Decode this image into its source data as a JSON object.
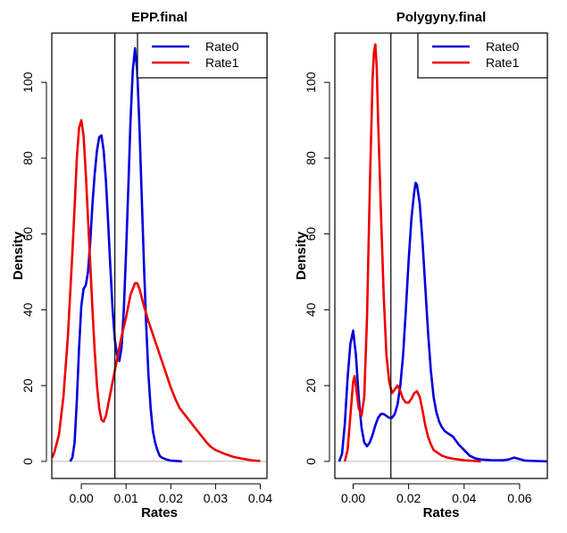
{
  "chart_data": [
    {
      "type": "line",
      "title": "EPP.final",
      "xlabel": "Rates",
      "ylabel": "Density",
      "xlim": [
        -0.0066,
        0.0415
      ],
      "ylim": [
        -4.5,
        113
      ],
      "xticks": [
        0.0,
        0.01,
        0.02,
        0.03,
        0.04
      ],
      "xtick_labels": [
        "0.00",
        "0.01",
        "0.02",
        "0.03",
        "0.04"
      ],
      "yticks": [
        0,
        20,
        40,
        60,
        80,
        100
      ],
      "ytick_labels": [
        "0",
        "20",
        "40",
        "60",
        "80",
        "100"
      ],
      "vline": 0.0075,
      "legend": {
        "position": "top-right",
        "entries": [
          "Rate0",
          "Rate1"
        ]
      },
      "series": [
        {
          "name": "Rate0",
          "color": "#0000dd",
          "points": [
            [
              -0.0025,
              0
            ],
            [
              -0.002,
              1
            ],
            [
              -0.0015,
              5
            ],
            [
              -0.001,
              16
            ],
            [
              -0.0005,
              30
            ],
            [
              0.0,
              41
            ],
            [
              0.0005,
              45.5
            ],
            [
              0.001,
              46.5
            ],
            [
              0.0015,
              50
            ],
            [
              0.002,
              58
            ],
            [
              0.0025,
              68
            ],
            [
              0.003,
              76
            ],
            [
              0.0035,
              82
            ],
            [
              0.004,
              85.5
            ],
            [
              0.0045,
              86
            ],
            [
              0.005,
              82
            ],
            [
              0.0055,
              74
            ],
            [
              0.006,
              63
            ],
            [
              0.0065,
              51
            ],
            [
              0.007,
              40
            ],
            [
              0.0075,
              32
            ],
            [
              0.008,
              28
            ],
            [
              0.0085,
              26.5
            ],
            [
              0.009,
              30
            ],
            [
              0.0095,
              40
            ],
            [
              0.01,
              55
            ],
            [
              0.0105,
              72
            ],
            [
              0.011,
              90
            ],
            [
              0.0115,
              103
            ],
            [
              0.012,
              109
            ],
            [
              0.0125,
              103
            ],
            [
              0.013,
              88
            ],
            [
              0.0135,
              70
            ],
            [
              0.014,
              52
            ],
            [
              0.0145,
              36
            ],
            [
              0.015,
              23
            ],
            [
              0.0155,
              14
            ],
            [
              0.016,
              8
            ],
            [
              0.0165,
              5
            ],
            [
              0.017,
              3
            ],
            [
              0.0175,
              1.5
            ],
            [
              0.018,
              1
            ],
            [
              0.019,
              0.5
            ],
            [
              0.02,
              0.2
            ],
            [
              0.0225,
              0
            ]
          ]
        },
        {
          "name": "Rate1",
          "color": "#ee0000",
          "points": [
            [
              -0.0065,
              1
            ],
            [
              -0.006,
              2.5
            ],
            [
              -0.005,
              7
            ],
            [
              -0.004,
              17
            ],
            [
              -0.003,
              33
            ],
            [
              -0.002,
              55
            ],
            [
              -0.0015,
              67
            ],
            [
              -0.001,
              80
            ],
            [
              -0.0005,
              88
            ],
            [
              0.0,
              90
            ],
            [
              0.0005,
              86
            ],
            [
              0.001,
              76
            ],
            [
              0.0015,
              64
            ],
            [
              0.002,
              52
            ],
            [
              0.0025,
              40
            ],
            [
              0.003,
              29
            ],
            [
              0.0035,
              20
            ],
            [
              0.004,
              14
            ],
            [
              0.0045,
              11
            ],
            [
              0.005,
              10.5
            ],
            [
              0.0055,
              12
            ],
            [
              0.006,
              15
            ],
            [
              0.007,
              21
            ],
            [
              0.008,
              27
            ],
            [
              0.009,
              33
            ],
            [
              0.01,
              38
            ],
            [
              0.011,
              44
            ],
            [
              0.012,
              47
            ],
            [
              0.0125,
              47
            ],
            [
              0.013,
              45.5
            ],
            [
              0.014,
              41
            ],
            [
              0.015,
              37
            ],
            [
              0.016,
              33.5
            ],
            [
              0.017,
              30
            ],
            [
              0.018,
              26.5
            ],
            [
              0.019,
              23
            ],
            [
              0.02,
              19.5
            ],
            [
              0.021,
              16.5
            ],
            [
              0.022,
              14
            ],
            [
              0.023,
              12.5
            ],
            [
              0.024,
              11
            ],
            [
              0.025,
              9.5
            ],
            [
              0.026,
              8
            ],
            [
              0.027,
              6.5
            ],
            [
              0.028,
              5
            ],
            [
              0.029,
              3.8
            ],
            [
              0.03,
              3
            ],
            [
              0.032,
              2
            ],
            [
              0.034,
              1.2
            ],
            [
              0.036,
              0.7
            ],
            [
              0.038,
              0.3
            ],
            [
              0.04,
              0.1
            ]
          ]
        }
      ]
    },
    {
      "type": "line",
      "title": "Polygyny.final",
      "xlabel": "Rates",
      "ylabel": "Density",
      "xlim": [
        -0.0066,
        0.07
      ],
      "ylim": [
        -4.5,
        113
      ],
      "xticks": [
        0.0,
        0.02,
        0.04,
        0.06
      ],
      "xtick_labels": [
        "0.00",
        "0.02",
        "0.04",
        "0.06"
      ],
      "yticks": [
        0,
        20,
        40,
        60,
        80,
        100
      ],
      "ytick_labels": [
        "0",
        "20",
        "40",
        "60",
        "80",
        "100"
      ],
      "vline": 0.0136,
      "legend": {
        "position": "top-right",
        "entries": [
          "Rate0",
          "Rate1"
        ]
      },
      "series": [
        {
          "name": "Rate0",
          "color": "#0000dd",
          "points": [
            [
              -0.005,
              0
            ],
            [
              -0.004,
              2
            ],
            [
              -0.003,
              10
            ],
            [
              -0.002,
              22
            ],
            [
              -0.001,
              31
            ],
            [
              0.0,
              34.5
            ],
            [
              0.001,
              28
            ],
            [
              0.002,
              17
            ],
            [
              0.003,
              9
            ],
            [
              0.004,
              5
            ],
            [
              0.005,
              4
            ],
            [
              0.006,
              5
            ],
            [
              0.007,
              7
            ],
            [
              0.008,
              9.5
            ],
            [
              0.009,
              11.5
            ],
            [
              0.01,
              12.5
            ],
            [
              0.011,
              12.5
            ],
            [
              0.012,
              12
            ],
            [
              0.013,
              11.5
            ],
            [
              0.014,
              11.5
            ],
            [
              0.015,
              12.5
            ],
            [
              0.016,
              15
            ],
            [
              0.017,
              20
            ],
            [
              0.018,
              28
            ],
            [
              0.019,
              40
            ],
            [
              0.02,
              53
            ],
            [
              0.021,
              64
            ],
            [
              0.022,
              71
            ],
            [
              0.0225,
              73.5
            ],
            [
              0.023,
              73
            ],
            [
              0.024,
              68
            ],
            [
              0.025,
              58
            ],
            [
              0.026,
              46
            ],
            [
              0.027,
              34
            ],
            [
              0.028,
              24
            ],
            [
              0.029,
              17
            ],
            [
              0.03,
              13
            ],
            [
              0.031,
              10.5
            ],
            [
              0.032,
              9
            ],
            [
              0.033,
              8
            ],
            [
              0.034,
              7.5
            ],
            [
              0.035,
              7
            ],
            [
              0.036,
              6.5
            ],
            [
              0.037,
              5.5
            ],
            [
              0.038,
              4.5
            ],
            [
              0.04,
              3
            ],
            [
              0.042,
              1.5
            ],
            [
              0.044,
              0.8
            ],
            [
              0.046,
              0.5
            ],
            [
              0.05,
              0.3
            ],
            [
              0.054,
              0.3
            ],
            [
              0.056,
              0.5
            ],
            [
              0.058,
              1
            ],
            [
              0.06,
              0.6
            ],
            [
              0.062,
              0.2
            ],
            [
              0.066,
              0.1
            ],
            [
              0.07,
              0
            ]
          ]
        },
        {
          "name": "Rate1",
          "color": "#ee0000",
          "points": [
            [
              -0.003,
              0
            ],
            [
              -0.002,
              3
            ],
            [
              -0.001,
              12
            ],
            [
              0.0,
              21
            ],
            [
              0.0005,
              22.5
            ],
            [
              0.001,
              20
            ],
            [
              0.002,
              14
            ],
            [
              0.003,
              12
            ],
            [
              0.004,
              17
            ],
            [
              0.005,
              38
            ],
            [
              0.006,
              72
            ],
            [
              0.007,
              101
            ],
            [
              0.0075,
              108
            ],
            [
              0.008,
              110
            ],
            [
              0.0085,
              104
            ],
            [
              0.009,
              90
            ],
            [
              0.01,
              66
            ],
            [
              0.011,
              44
            ],
            [
              0.012,
              28
            ],
            [
              0.013,
              21
            ],
            [
              0.014,
              18
            ],
            [
              0.015,
              19
            ],
            [
              0.016,
              20
            ],
            [
              0.017,
              18.5
            ],
            [
              0.018,
              16.5
            ],
            [
              0.019,
              15.5
            ],
            [
              0.02,
              15.5
            ],
            [
              0.021,
              16.5
            ],
            [
              0.022,
              18
            ],
            [
              0.023,
              18.5
            ],
            [
              0.024,
              17
            ],
            [
              0.025,
              13.5
            ],
            [
              0.026,
              9.5
            ],
            [
              0.027,
              6.5
            ],
            [
              0.028,
              4.5
            ],
            [
              0.029,
              3
            ],
            [
              0.03,
              2.5
            ],
            [
              0.031,
              2
            ],
            [
              0.032,
              1.5
            ],
            [
              0.034,
              1
            ],
            [
              0.036,
              0.7
            ],
            [
              0.038,
              0.5
            ],
            [
              0.04,
              0.3
            ],
            [
              0.042,
              0.2
            ],
            [
              0.044,
              0.1
            ],
            [
              0.046,
              0
            ]
          ]
        }
      ]
    }
  ]
}
